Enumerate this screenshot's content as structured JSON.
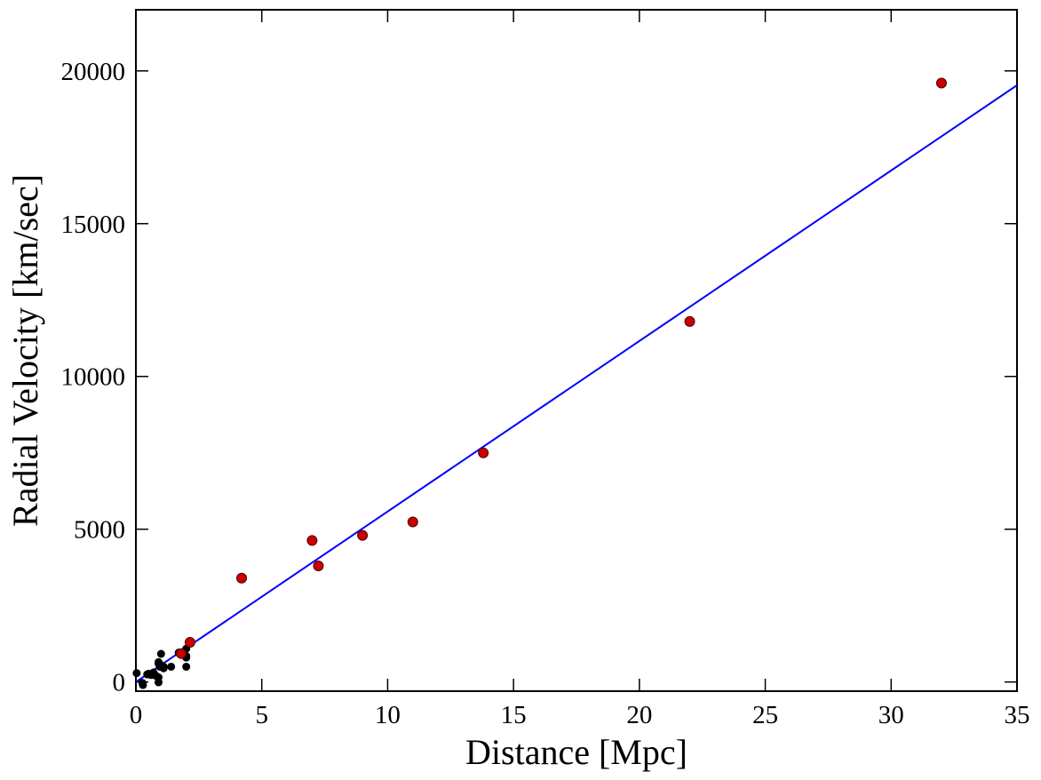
{
  "chart_data": {
    "type": "scatter",
    "title": "",
    "xlabel": "Distance [Mpc]",
    "ylabel": "Radial Velocity [km/sec]",
    "xlim": [
      0,
      35
    ],
    "ylim": [
      -300,
      22000
    ],
    "xticks": [
      0,
      5,
      10,
      15,
      20,
      25,
      30,
      35
    ],
    "yticks": [
      0,
      5000,
      10000,
      15000,
      20000
    ],
    "grid": false,
    "legend": "none",
    "colors": {
      "fit_line": "#0000ff",
      "near_points": "#000000",
      "far_points_fill": "#cc0000",
      "far_points_edge": "#4a0000",
      "axes": "#000000"
    },
    "series": [
      {
        "marker": "black-dot",
        "points": [
          [
            0.03,
            290
          ],
          [
            0.26,
            -30
          ],
          [
            0.28,
            -100
          ],
          [
            0.45,
            250
          ],
          [
            0.5,
            270
          ],
          [
            0.6,
            230
          ],
          [
            0.7,
            310
          ],
          [
            0.8,
            200
          ],
          [
            0.9,
            650
          ],
          [
            0.9,
            600
          ],
          [
            0.9,
            150
          ],
          [
            0.9,
            -10
          ],
          [
            0.95,
            500
          ],
          [
            1.0,
            920
          ],
          [
            1.0,
            550
          ],
          [
            1.1,
            500
          ],
          [
            1.1,
            450
          ],
          [
            1.4,
            500
          ],
          [
            1.7,
            960
          ],
          [
            2.0,
            500
          ],
          [
            2.0,
            850
          ],
          [
            2.0,
            800
          ],
          [
            2.0,
            1090
          ]
        ]
      },
      {
        "marker": "red-circle",
        "points": [
          [
            1.8,
            930
          ],
          [
            2.15,
            1300
          ],
          [
            4.2,
            3400
          ],
          [
            7.0,
            4630
          ],
          [
            7.25,
            3800
          ],
          [
            9.0,
            4800
          ],
          [
            11.0,
            5240
          ],
          [
            13.8,
            7500
          ],
          [
            22.0,
            11800
          ],
          [
            32.0,
            19600
          ]
        ]
      },
      {
        "type": "line",
        "points": [
          [
            0,
            0
          ],
          [
            35,
            19530
          ]
        ]
      }
    ]
  }
}
